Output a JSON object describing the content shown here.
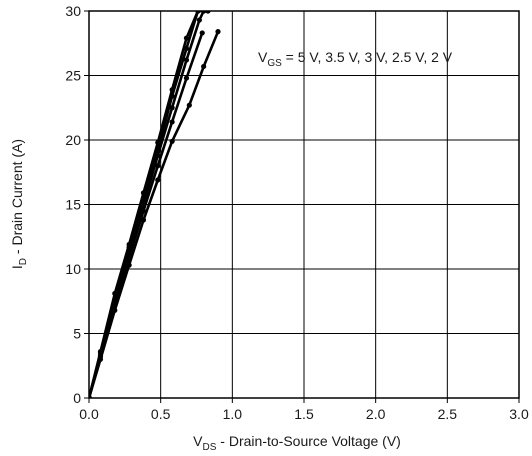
{
  "chart_data": {
    "type": "line",
    "xlabel": {
      "main": "V",
      "sub": "DS",
      "rest": " - Drain-to-Source Voltage (V)"
    },
    "ylabel": {
      "main": "I",
      "sub": "D",
      "rest": " - Drain Current (A)"
    },
    "annotation": {
      "main": "V",
      "sub": "GS",
      "rest": " = 5 V, 3.5 V, 3 V, 2.5 V, 2 V"
    },
    "xlim": [
      0,
      3.0
    ],
    "ylim": [
      0,
      30
    ],
    "x_ticks": [
      "0.0",
      "0.5",
      "1.0",
      "1.5",
      "2.0",
      "2.5",
      "3.0"
    ],
    "y_ticks": [
      "0",
      "5",
      "10",
      "15",
      "20",
      "25",
      "30"
    ],
    "grid": true,
    "line_color": "#000000",
    "series": [
      {
        "x": [
          0,
          0.08,
          0.18,
          0.28,
          0.38,
          0.48,
          0.58,
          0.68,
          0.76,
          0.8
        ],
        "y": [
          0,
          3.6,
          8.1,
          11.9,
          15.9,
          19.8,
          23.9,
          27.9,
          30.0,
          30.0
        ]
      },
      {
        "x": [
          0,
          0.08,
          0.18,
          0.28,
          0.38,
          0.48,
          0.58,
          0.68,
          0.76,
          0.83
        ],
        "y": [
          0,
          3.5,
          7.6,
          11.7,
          15.4,
          19.2,
          23.4,
          27.1,
          30.0,
          30.0
        ]
      },
      {
        "x": [
          0,
          0.08,
          0.18,
          0.28,
          0.38,
          0.48,
          0.58,
          0.68,
          0.77,
          0.8
        ],
        "y": [
          0,
          3.3,
          7.4,
          11.4,
          15.0,
          18.8,
          22.5,
          26.2,
          29.3,
          30.0
        ]
      },
      {
        "x": [
          0,
          0.08,
          0.18,
          0.28,
          0.38,
          0.48,
          0.58,
          0.68,
          0.79
        ],
        "y": [
          0,
          3.2,
          7.2,
          10.9,
          14.5,
          18.0,
          21.4,
          24.8,
          28.3
        ]
      },
      {
        "x": [
          0,
          0.08,
          0.18,
          0.28,
          0.38,
          0.48,
          0.58,
          0.7,
          0.8,
          0.9
        ],
        "y": [
          0,
          3.0,
          6.8,
          10.3,
          13.8,
          16.9,
          19.9,
          22.7,
          25.7,
          28.4
        ]
      }
    ]
  }
}
